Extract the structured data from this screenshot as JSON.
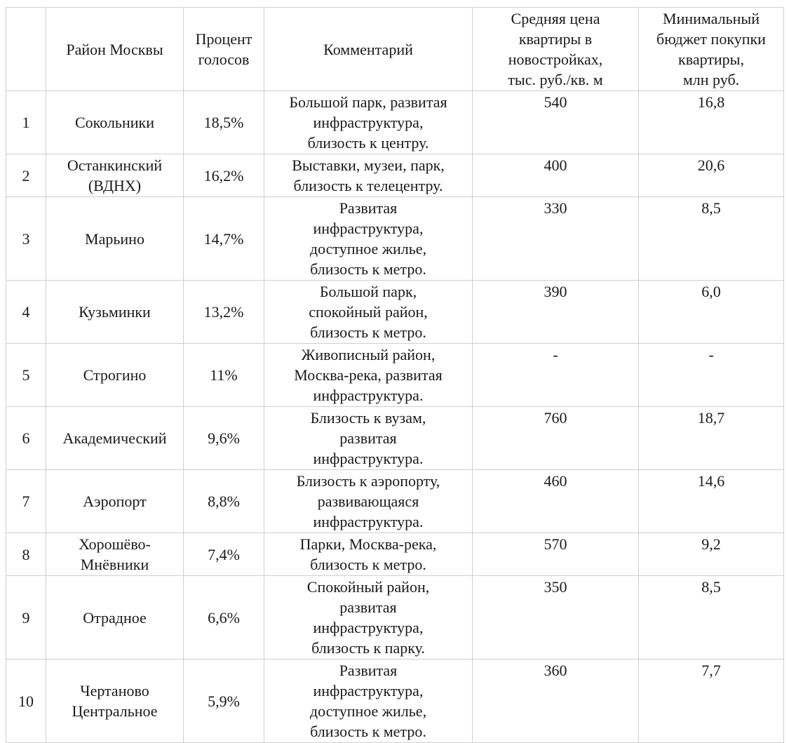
{
  "colors": {
    "border": "#cfcfcf",
    "text": "#1a1a1a",
    "background": "#ffffff"
  },
  "table": {
    "headers": {
      "index": "",
      "district": "Район Москвы",
      "percent": "Процент\nголосов",
      "comment": "Комментарий",
      "price": "Средняя цена\nквартиры в\nновостройках,\nтыс. руб./кв. м",
      "budget": "Минимальный\nбюджет покупки\nквартиры,\nмлн руб."
    },
    "rows": [
      {
        "num": "1",
        "district": "Сокольники",
        "percent": "18,5%",
        "comment": "Большой парк, развитая\nинфраструктура,\nблизость к центру.",
        "price": "540",
        "budget": "16,8"
      },
      {
        "num": "2",
        "district": "Останкинский\n(ВДНХ)",
        "percent": "16,2%",
        "comment": "Выставки, музеи, парк,\nблизость к телецентру.",
        "price": "400",
        "budget": "20,6"
      },
      {
        "num": "3",
        "district": "Марьино",
        "percent": "14,7%",
        "comment": "Развитая\nинфраструктура,\nдоступное жилье,\nблизость к метро.",
        "price": "330",
        "budget": "8,5"
      },
      {
        "num": "4",
        "district": "Кузьминки",
        "percent": "13,2%",
        "comment": "Большой парк,\nспокойный район,\nблизость к метро.",
        "price": "390",
        "budget": "6,0"
      },
      {
        "num": "5",
        "district": "Строгино",
        "percent": "11%",
        "comment": "Живописный район,\nМосква-река, развитая\nинфраструктура.",
        "price": "-",
        "budget": "-"
      },
      {
        "num": "6",
        "district": "Академический",
        "percent": "9,6%",
        "comment": "Близость к вузам,\nразвитая\nинфраструктура.",
        "price": "760",
        "budget": "18,7"
      },
      {
        "num": "7",
        "district": "Аэропорт",
        "percent": "8,8%",
        "comment": "Близость к аэропорту,\nразвивающаяся\nинфраструктура.",
        "price": "460",
        "budget": "14,6"
      },
      {
        "num": "8",
        "district": "Хорошёво-\nМнёвники",
        "percent": "7,4%",
        "comment": "Парки, Москва-река,\nблизость к метро.",
        "price": "570",
        "budget": "9,2"
      },
      {
        "num": "9",
        "district": "Отрадное",
        "percent": "6,6%",
        "comment": "Спокойный район,\nразвитая\nинфраструктура,\nблизость к парку.",
        "price": "350",
        "budget": "8,5"
      },
      {
        "num": "10",
        "district": "Чертаново\nЦентральное",
        "percent": "5,9%",
        "comment": "Развитая\nинфраструктура,\nдоступное жилье,\nблизость к метро.",
        "price": "360",
        "budget": "7,7"
      }
    ]
  }
}
